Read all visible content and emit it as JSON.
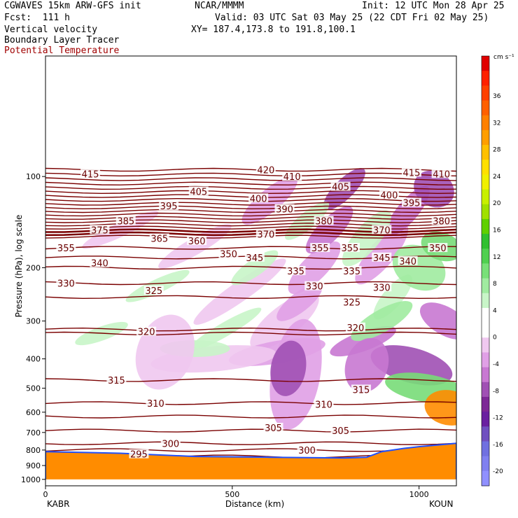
{
  "header": {
    "left1": "CGWAVES 15km ARW-GFS init",
    "left2": "Fcst:  111 h",
    "left3": "Vertical velocity",
    "left4": "Boundary Layer Tracer",
    "left5": "Potential Temperature",
    "center1": "NCAR/MMMM",
    "init": "Init: 12 UTC Mon 28 Apr 25",
    "valid": "Valid: 03 UTC Sat 03 May 25 (22 CDT Fri 02 May 25)",
    "xy": "XY= 187.4,173.8 to 191.8,100.1"
  },
  "colors": {
    "theta": "#7a0000",
    "terrain": "#ff8c00",
    "neg": [
      "#f0c8f0",
      "#e0a0e6",
      "#c878d2",
      "#a050b4",
      "#7d2896",
      "#9a78d2",
      "#7070e0",
      "#8c8cf0"
    ],
    "pos": [
      "#c8f5c8",
      "#a0eba0",
      "#78dc78",
      "#50cc50",
      "#28b428"
    ]
  },
  "chart_data": {
    "type": "heatmap",
    "title": "Vertical velocity",
    "xlabel": "Distance (km)",
    "ylabel": "Pressure (hPa), log scale",
    "x_ticks": [
      0,
      500,
      1000
    ],
    "xlim": [
      0,
      1100
    ],
    "endpoints": {
      "left": "KABR",
      "right": "KOUN"
    },
    "y_ticks": [
      100,
      200,
      300,
      400,
      500,
      600,
      700,
      800,
      900,
      1000
    ],
    "ylim": [
      1050,
      40
    ],
    "y_scale": "log",
    "colorbar": {
      "unit": "cm s⁻¹",
      "ticks": [
        36,
        32,
        28,
        24,
        20,
        16,
        12,
        8,
        4,
        0,
        -4,
        -8,
        -12,
        -16,
        -20
      ]
    },
    "theta_contours": {
      "labels": [
        {
          "value": 415,
          "x": 120,
          "p": 98
        },
        {
          "value": 420,
          "x": 590,
          "p": 95
        },
        {
          "value": 410,
          "x": 660,
          "p": 100
        },
        {
          "value": 415,
          "x": 980,
          "p": 97
        },
        {
          "value": 410,
          "x": 1060,
          "p": 98
        },
        {
          "value": 405,
          "x": 410,
          "p": 112
        },
        {
          "value": 405,
          "x": 790,
          "p": 108
        },
        {
          "value": 400,
          "x": 570,
          "p": 118
        },
        {
          "value": 400,
          "x": 920,
          "p": 115
        },
        {
          "value": 395,
          "x": 330,
          "p": 125
        },
        {
          "value": 395,
          "x": 980,
          "p": 122
        },
        {
          "value": 390,
          "x": 640,
          "p": 128
        },
        {
          "value": 385,
          "x": 215,
          "p": 140
        },
        {
          "value": 380,
          "x": 745,
          "p": 140
        },
        {
          "value": 380,
          "x": 1060,
          "p": 140
        },
        {
          "value": 375,
          "x": 145,
          "p": 150
        },
        {
          "value": 370,
          "x": 590,
          "p": 155
        },
        {
          "value": 370,
          "x": 900,
          "p": 150
        },
        {
          "value": 365,
          "x": 305,
          "p": 160
        },
        {
          "value": 360,
          "x": 405,
          "p": 163
        },
        {
          "value": 355,
          "x": 55,
          "p": 172
        },
        {
          "value": 355,
          "x": 735,
          "p": 172
        },
        {
          "value": 355,
          "x": 815,
          "p": 172
        },
        {
          "value": 350,
          "x": 490,
          "p": 180
        },
        {
          "value": 350,
          "x": 1050,
          "p": 172
        },
        {
          "value": 345,
          "x": 560,
          "p": 185
        },
        {
          "value": 345,
          "x": 900,
          "p": 185
        },
        {
          "value": 340,
          "x": 145,
          "p": 193
        },
        {
          "value": 340,
          "x": 970,
          "p": 190
        },
        {
          "value": 335,
          "x": 670,
          "p": 205
        },
        {
          "value": 335,
          "x": 820,
          "p": 205
        },
        {
          "value": 330,
          "x": 55,
          "p": 225
        },
        {
          "value": 330,
          "x": 720,
          "p": 230
        },
        {
          "value": 330,
          "x": 900,
          "p": 232
        },
        {
          "value": 325,
          "x": 290,
          "p": 238
        },
        {
          "value": 325,
          "x": 820,
          "p": 260
        },
        {
          "value": 320,
          "x": 270,
          "p": 325
        },
        {
          "value": 320,
          "x": 830,
          "p": 315
        },
        {
          "value": 315,
          "x": 190,
          "p": 470
        },
        {
          "value": 315,
          "x": 845,
          "p": 505
        },
        {
          "value": 310,
          "x": 295,
          "p": 560
        },
        {
          "value": 310,
          "x": 745,
          "p": 565
        },
        {
          "value": 305,
          "x": 610,
          "p": 675
        },
        {
          "value": 305,
          "x": 790,
          "p": 690
        },
        {
          "value": 300,
          "x": 335,
          "p": 760
        },
        {
          "value": 300,
          "x": 700,
          "p": 800
        },
        {
          "value": 295,
          "x": 250,
          "p": 825
        }
      ]
    }
  }
}
